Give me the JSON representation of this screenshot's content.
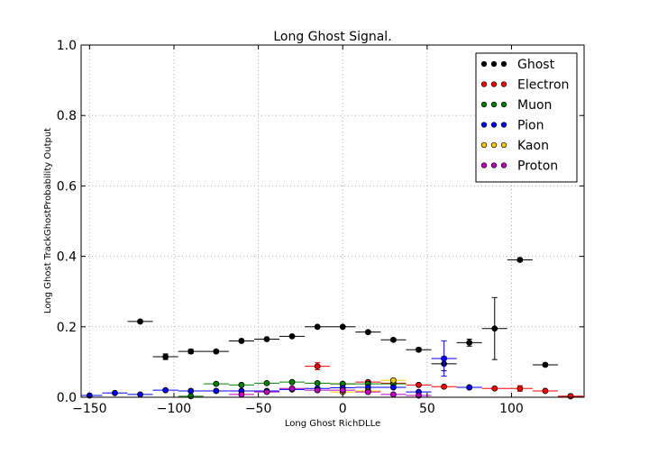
{
  "chart_data": {
    "type": "scatter",
    "title": "Long Ghost Signal.",
    "xlabel": "Long Ghost RichDLLe",
    "ylabel": "Long Ghost TrackGhostProbability Output",
    "xlim": [
      -155,
      143
    ],
    "ylim": [
      0.0,
      1.0
    ],
    "xticks": [
      -150,
      -100,
      -50,
      0,
      50,
      100
    ],
    "yticks": [
      0.0,
      0.2,
      0.4,
      0.6,
      0.8,
      1.0
    ],
    "xtick_labels": [
      "−150",
      "−100",
      "−50",
      "0",
      "50",
      "100"
    ],
    "ytick_labels": [
      "0.0",
      "0.2",
      "0.4",
      "0.6",
      "0.8",
      "1.0"
    ],
    "grid": true,
    "legend_position": "top-right",
    "bin_half_width": 7.5,
    "series": [
      {
        "name": "Ghost",
        "color": "#000000",
        "x": [
          -120,
          -105,
          -90,
          -75,
          -60,
          -45,
          -30,
          -15,
          0,
          15,
          30,
          45,
          60,
          75,
          90,
          105,
          120,
          135
        ],
        "y": [
          0.215,
          0.115,
          0.13,
          0.13,
          0.16,
          0.165,
          0.173,
          0.2,
          0.2,
          0.185,
          0.163,
          0.135,
          0.095,
          0.155,
          0.195,
          0.39,
          0.092,
          0.003
        ],
        "yerr": [
          0.004,
          0.008,
          0.006,
          0.004,
          0.004,
          0.003,
          0.003,
          0.003,
          0.003,
          0.004,
          0.004,
          0.005,
          0.02,
          0.01,
          0.088,
          0.004,
          0.004,
          0.002
        ]
      },
      {
        "name": "Electron",
        "color": "#ff0000",
        "x": [
          -15,
          0,
          15,
          30,
          45,
          60,
          75,
          90,
          105,
          120,
          135
        ],
        "y": [
          0.088,
          0.038,
          0.043,
          0.04,
          0.035,
          0.03,
          0.028,
          0.025,
          0.025,
          0.018,
          0.003
        ],
        "yerr": [
          0.01,
          0.003,
          0.003,
          0.003,
          0.003,
          0.003,
          0.003,
          0.003,
          0.008,
          0.003,
          0.002
        ]
      },
      {
        "name": "Muon",
        "color": "#008000",
        "x": [
          -90,
          -75,
          -60,
          -45,
          -30,
          -15,
          0,
          15,
          30
        ],
        "y": [
          0.003,
          0.038,
          0.035,
          0.04,
          0.043,
          0.04,
          0.038,
          0.038,
          0.038
        ],
        "yerr": [
          0.002,
          0.003,
          0.003,
          0.003,
          0.003,
          0.003,
          0.003,
          0.003,
          0.003
        ]
      },
      {
        "name": "Pion",
        "color": "#0000ff",
        "x": [
          -150,
          -135,
          -120,
          -105,
          -90,
          -75,
          -60,
          -45,
          -30,
          -15,
          0,
          15,
          30,
          45,
          60,
          75
        ],
        "y": [
          0.005,
          0.012,
          0.008,
          0.02,
          0.018,
          0.018,
          0.018,
          0.018,
          0.022,
          0.025,
          0.027,
          0.028,
          0.028,
          0.015,
          0.11,
          0.028
        ],
        "yerr": [
          0.002,
          0.002,
          0.002,
          0.002,
          0.002,
          0.002,
          0.002,
          0.002,
          0.002,
          0.002,
          0.002,
          0.002,
          0.003,
          0.003,
          0.05,
          0.003
        ]
      },
      {
        "name": "Kaon",
        "color": "#ffcc00",
        "x": [
          0,
          15,
          30
        ],
        "y": [
          0.015,
          0.018,
          0.048
        ],
        "yerr": [
          0.003,
          0.003,
          0.004
        ]
      },
      {
        "name": "Proton",
        "color": "#bf00bf",
        "x": [
          -60,
          -45,
          -30,
          -15,
          0,
          15,
          30,
          45
        ],
        "y": [
          0.008,
          0.015,
          0.025,
          0.02,
          0.02,
          0.015,
          0.008,
          0.005
        ],
        "yerr": [
          0.002,
          0.002,
          0.002,
          0.002,
          0.002,
          0.002,
          0.002,
          0.002
        ]
      }
    ]
  }
}
